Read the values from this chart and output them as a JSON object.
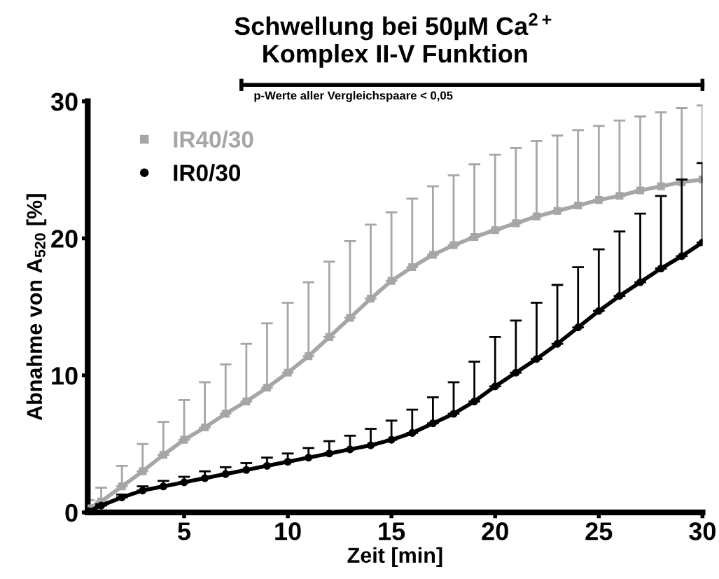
{
  "chart_data": {
    "type": "line",
    "title": "Schwellung bei 50µM Ca$^{2+}$\nKomplex II-V Funktion",
    "xlabel": "Zeit [min]",
    "ylabel": "Abnahme von A$_{520}$ [%]",
    "x": [
      0.4,
      1,
      2,
      3,
      4,
      5,
      6,
      7,
      8,
      9,
      10,
      11,
      12,
      13,
      14,
      15,
      16,
      17,
      18,
      19,
      20,
      21,
      22,
      23,
      24,
      25,
      26,
      27,
      28,
      29,
      30
    ],
    "series": [
      {
        "name": "IR40/30",
        "color": "#a6a6a6",
        "marker": "square",
        "values": [
          0.3,
          0.8,
          1.9,
          3.0,
          4.2,
          5.3,
          6.2,
          7.2,
          8.1,
          9.1,
          10.2,
          11.4,
          12.8,
          14.2,
          15.6,
          16.9,
          17.9,
          18.8,
          19.5,
          20.1,
          20.6,
          21.1,
          21.6,
          22.0,
          22.4,
          22.8,
          23.1,
          23.5,
          23.8,
          24.1,
          24.3
        ],
        "errors": [
          [
            0.3,
            0.9
          ],
          [
            0.8,
            1.8
          ],
          [
            1.9,
            3.4
          ],
          [
            3.0,
            5.0
          ],
          [
            4.2,
            6.6
          ],
          [
            5.3,
            8.2
          ],
          [
            6.2,
            9.5
          ],
          [
            7.2,
            10.8
          ],
          [
            8.1,
            12.3
          ],
          [
            9.1,
            13.8
          ],
          [
            10.2,
            15.3
          ],
          [
            11.4,
            16.8
          ],
          [
            12.8,
            18.3
          ],
          [
            14.2,
            19.8
          ],
          [
            15.6,
            21.0
          ],
          [
            16.9,
            21.9
          ],
          [
            17.9,
            22.9
          ],
          [
            18.8,
            23.8
          ],
          [
            19.5,
            24.6
          ],
          [
            20.1,
            25.4
          ],
          [
            20.6,
            26.1
          ],
          [
            21.1,
            26.6
          ],
          [
            21.6,
            27.1
          ],
          [
            22.0,
            27.5
          ],
          [
            22.4,
            27.9
          ],
          [
            22.8,
            28.2
          ],
          [
            23.1,
            28.6
          ],
          [
            23.5,
            28.9
          ],
          [
            23.8,
            29.2
          ],
          [
            24.1,
            29.5
          ],
          [
            24.3,
            29.7
          ]
        ]
      },
      {
        "name": "IR0/30",
        "color": "#000000",
        "marker": "circle",
        "values": [
          0.1,
          0.5,
          1.1,
          1.6,
          1.9,
          2.2,
          2.5,
          2.8,
          3.1,
          3.4,
          3.7,
          4.0,
          4.3,
          4.6,
          4.9,
          5.3,
          5.8,
          6.5,
          7.2,
          8.1,
          9.2,
          10.2,
          11.2,
          12.3,
          13.5,
          14.7,
          15.8,
          16.8,
          17.8,
          18.7,
          19.7
        ],
        "errors": [
          [
            0.1,
            0.2
          ],
          [
            0.5,
            0.6
          ],
          [
            1.1,
            1.3
          ],
          [
            1.6,
            1.9
          ],
          [
            1.9,
            2.3
          ],
          [
            2.2,
            2.6
          ],
          [
            2.5,
            3.0
          ],
          [
            2.8,
            3.3
          ],
          [
            3.1,
            3.6
          ],
          [
            3.4,
            4.0
          ],
          [
            3.7,
            4.3
          ],
          [
            4.0,
            4.7
          ],
          [
            4.3,
            5.2
          ],
          [
            4.6,
            5.6
          ],
          [
            4.9,
            6.1
          ],
          [
            5.3,
            6.7
          ],
          [
            5.8,
            7.5
          ],
          [
            6.5,
            8.4
          ],
          [
            7.2,
            9.5
          ],
          [
            8.1,
            11.0
          ],
          [
            9.2,
            12.8
          ],
          [
            10.2,
            14.0
          ],
          [
            11.2,
            15.3
          ],
          [
            12.3,
            16.6
          ],
          [
            13.5,
            17.9
          ],
          [
            14.7,
            19.2
          ],
          [
            15.8,
            20.5
          ],
          [
            16.8,
            21.8
          ],
          [
            17.8,
            23.1
          ],
          [
            18.7,
            24.3
          ],
          [
            19.7,
            25.5
          ]
        ]
      }
    ],
    "xlim": [
      0.35,
      30
    ],
    "xticks": [
      5,
      10,
      15,
      20,
      25,
      30
    ],
    "ylim": [
      0,
      30
    ],
    "yticks": [
      0,
      10,
      20,
      30
    ],
    "annotations": [
      "p-Werte aller Vergleichspaare < 0,05"
    ],
    "legend": "top left",
    "grid": false
  }
}
